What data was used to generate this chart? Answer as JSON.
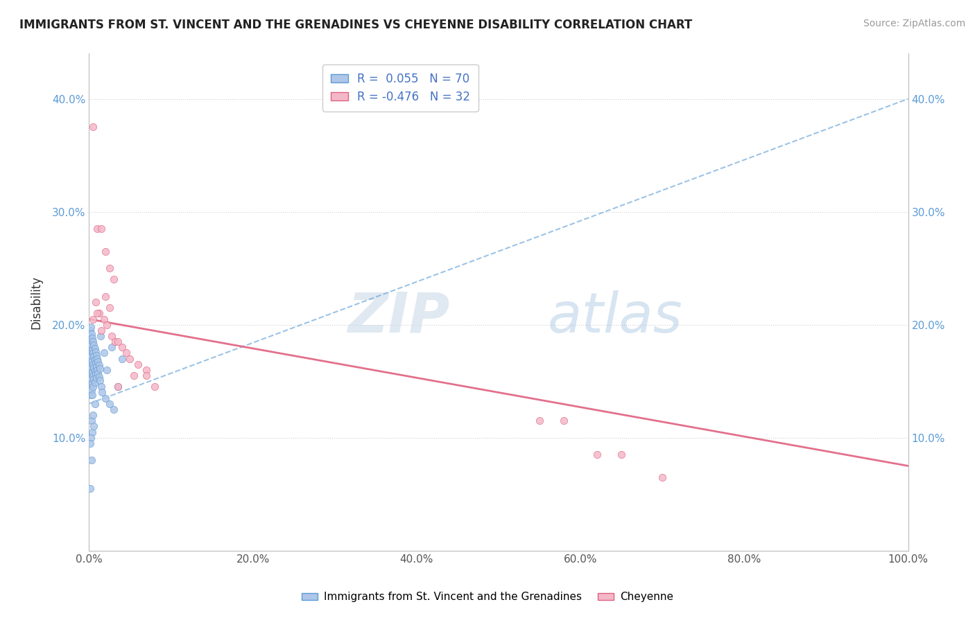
{
  "title": "IMMIGRANTS FROM ST. VINCENT AND THE GRENADINES VS CHEYENNE DISABILITY CORRELATION CHART",
  "source": "Source: ZipAtlas.com",
  "xlabel": "",
  "ylabel": "Disability",
  "xmin": 0.0,
  "xmax": 1.0,
  "ymin": 0.0,
  "ymax": 0.44,
  "xtick_labels": [
    "0.0%",
    "20.0%",
    "40.0%",
    "60.0%",
    "80.0%",
    "100.0%"
  ],
  "xtick_vals": [
    0.0,
    0.2,
    0.4,
    0.6,
    0.8,
    1.0
  ],
  "ytick_labels": [
    "10.0%",
    "20.0%",
    "30.0%",
    "40.0%"
  ],
  "ytick_vals": [
    0.1,
    0.2,
    0.3,
    0.4
  ],
  "legend_r1": "R =  0.055   N = 70",
  "legend_r2": "R = -0.476   N = 32",
  "blue_color": "#aec6e8",
  "pink_color": "#f4b8c8",
  "blue_line_color": "#5b9bd5",
  "pink_line_color": "#e06080",
  "blue_scatter": [
    [
      0.001,
      0.195
    ],
    [
      0.001,
      0.185
    ],
    [
      0.001,
      0.175
    ],
    [
      0.001,
      0.165
    ],
    [
      0.002,
      0.198
    ],
    [
      0.002,
      0.188
    ],
    [
      0.002,
      0.178
    ],
    [
      0.002,
      0.168
    ],
    [
      0.002,
      0.158
    ],
    [
      0.002,
      0.148
    ],
    [
      0.002,
      0.138
    ],
    [
      0.003,
      0.192
    ],
    [
      0.003,
      0.182
    ],
    [
      0.003,
      0.172
    ],
    [
      0.003,
      0.162
    ],
    [
      0.003,
      0.152
    ],
    [
      0.003,
      0.142
    ],
    [
      0.004,
      0.188
    ],
    [
      0.004,
      0.178
    ],
    [
      0.004,
      0.168
    ],
    [
      0.004,
      0.158
    ],
    [
      0.004,
      0.148
    ],
    [
      0.004,
      0.138
    ],
    [
      0.005,
      0.185
    ],
    [
      0.005,
      0.175
    ],
    [
      0.005,
      0.165
    ],
    [
      0.005,
      0.155
    ],
    [
      0.005,
      0.145
    ],
    [
      0.006,
      0.182
    ],
    [
      0.006,
      0.172
    ],
    [
      0.006,
      0.162
    ],
    [
      0.006,
      0.152
    ],
    [
      0.007,
      0.179
    ],
    [
      0.007,
      0.169
    ],
    [
      0.007,
      0.159
    ],
    [
      0.007,
      0.149
    ],
    [
      0.008,
      0.176
    ],
    [
      0.008,
      0.166
    ],
    [
      0.008,
      0.156
    ],
    [
      0.009,
      0.173
    ],
    [
      0.009,
      0.163
    ],
    [
      0.009,
      0.153
    ],
    [
      0.01,
      0.17
    ],
    [
      0.01,
      0.16
    ],
    [
      0.011,
      0.167
    ],
    [
      0.011,
      0.157
    ],
    [
      0.012,
      0.164
    ],
    [
      0.012,
      0.154
    ],
    [
      0.013,
      0.161
    ],
    [
      0.013,
      0.151
    ],
    [
      0.014,
      0.19
    ],
    [
      0.015,
      0.145
    ],
    [
      0.016,
      0.14
    ],
    [
      0.018,
      0.175
    ],
    [
      0.02,
      0.135
    ],
    [
      0.022,
      0.16
    ],
    [
      0.025,
      0.13
    ],
    [
      0.028,
      0.18
    ],
    [
      0.03,
      0.125
    ],
    [
      0.035,
      0.145
    ],
    [
      0.04,
      0.17
    ],
    [
      0.003,
      0.115
    ],
    [
      0.004,
      0.105
    ],
    [
      0.005,
      0.12
    ],
    [
      0.006,
      0.11
    ],
    [
      0.007,
      0.13
    ],
    [
      0.002,
      0.1
    ],
    [
      0.001,
      0.095
    ],
    [
      0.003,
      0.08
    ],
    [
      0.001,
      0.055
    ]
  ],
  "pink_scatter": [
    [
      0.005,
      0.375
    ],
    [
      0.01,
      0.285
    ],
    [
      0.015,
      0.285
    ],
    [
      0.02,
      0.265
    ],
    [
      0.025,
      0.25
    ],
    [
      0.03,
      0.24
    ],
    [
      0.02,
      0.225
    ],
    [
      0.025,
      0.215
    ],
    [
      0.012,
      0.21
    ],
    [
      0.018,
      0.205
    ],
    [
      0.022,
      0.2
    ],
    [
      0.015,
      0.195
    ],
    [
      0.028,
      0.19
    ],
    [
      0.032,
      0.185
    ],
    [
      0.035,
      0.185
    ],
    [
      0.04,
      0.18
    ],
    [
      0.045,
      0.175
    ],
    [
      0.05,
      0.17
    ],
    [
      0.06,
      0.165
    ],
    [
      0.07,
      0.16
    ],
    [
      0.055,
      0.155
    ],
    [
      0.035,
      0.145
    ],
    [
      0.55,
      0.115
    ],
    [
      0.58,
      0.115
    ],
    [
      0.62,
      0.085
    ],
    [
      0.65,
      0.085
    ],
    [
      0.7,
      0.065
    ],
    [
      0.008,
      0.22
    ],
    [
      0.01,
      0.21
    ],
    [
      0.005,
      0.205
    ],
    [
      0.07,
      0.155
    ],
    [
      0.08,
      0.145
    ]
  ],
  "blue_trend_x": [
    0.0,
    1.0
  ],
  "blue_trend_y": [
    0.13,
    0.4
  ],
  "pink_trend_x": [
    0.0,
    1.0
  ],
  "pink_trend_y": [
    0.205,
    0.075
  ],
  "watermark_zip": "ZIP",
  "watermark_atlas": "atlas",
  "grid_color": "#d0d0d0",
  "bg_color": "#ffffff"
}
